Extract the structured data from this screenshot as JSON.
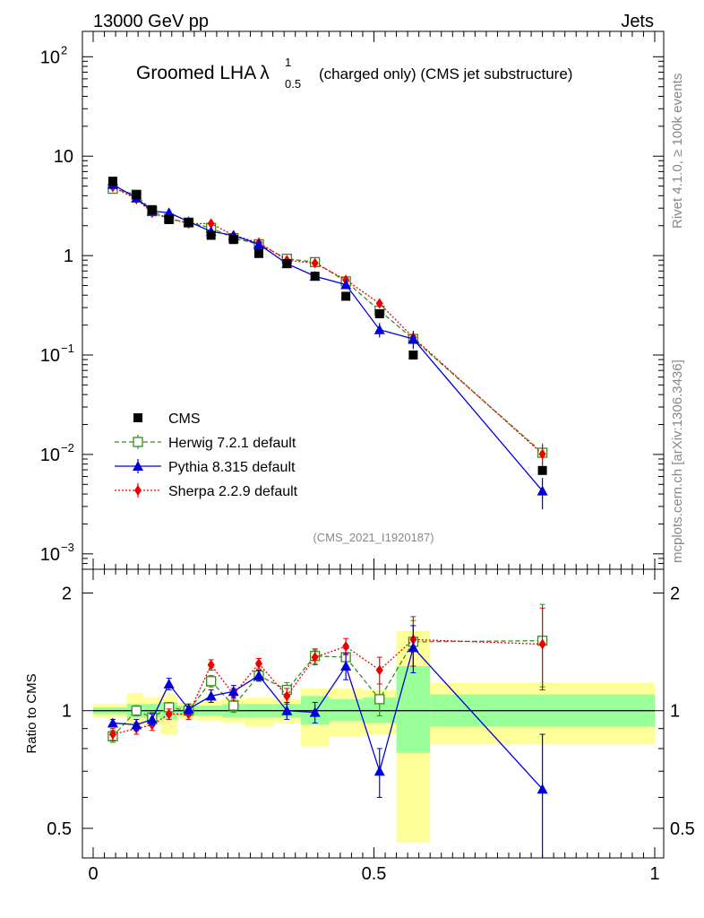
{
  "header": {
    "energy": "13000 GeV pp",
    "category": "Jets",
    "title_pre": "Groomed LHA",
    "lambda": "λ",
    "sup": "1",
    "sub": "0.5",
    "title_post": "(charged only) (CMS jet substructure)",
    "side_top": "Rivet 4.1.0, ≥ 100k events",
    "side_bottom": "mcplots.cern.ch [arXiv:1306.3436]",
    "analysis_id": "(CMS_2021_I1920187)"
  },
  "colors": {
    "herwig": "#3a8a1c",
    "pythia": "#0000dd",
    "sherpa": "#ee0000",
    "band_inner": "#99ff99",
    "band_outer": "#ffff99"
  },
  "chart_data": {
    "type": "scatter",
    "main": {
      "yscale": "log",
      "ylim": [
        0.0007,
        180
      ],
      "y_ticks": [
        {
          "value": 100,
          "base": "10",
          "exp": "2"
        },
        {
          "value": 10,
          "base": "10",
          "exp": ""
        },
        {
          "value": 1,
          "base": "1",
          "exp": ""
        },
        {
          "value": 0.1,
          "base": "10",
          "exp": "−1"
        },
        {
          "value": 0.01,
          "base": "10",
          "exp": "−2"
        },
        {
          "value": 0.001,
          "base": "10",
          "exp": "−3"
        }
      ],
      "legend_position": "lower-left",
      "series": [
        {
          "name": "CMS",
          "key": "cms",
          "x": [
            0.035,
            0.077,
            0.105,
            0.135,
            0.17,
            0.21,
            0.25,
            0.295,
            0.345,
            0.395,
            0.45,
            0.51,
            0.57,
            0.8
          ],
          "values": [
            5.6,
            4.1,
            2.9,
            2.3,
            2.15,
            1.6,
            1.45,
            1.05,
            0.83,
            0.62,
            0.39,
            0.26,
            0.1,
            0.0069
          ]
        },
        {
          "name": "Herwig 7.2.1 default",
          "key": "herwig",
          "x": [
            0.035,
            0.077,
            0.105,
            0.135,
            0.17,
            0.21,
            0.25,
            0.295,
            0.345,
            0.395,
            0.45,
            0.51,
            0.57,
            0.8
          ],
          "values": [
            4.7,
            4.1,
            2.8,
            2.35,
            2.15,
            1.9,
            1.5,
            1.3,
            0.93,
            0.86,
            0.55,
            0.28,
            0.145,
            0.0104
          ],
          "errors": [
            0.15,
            0.12,
            0.08,
            0.07,
            0.07,
            0.06,
            0.05,
            0.05,
            0.04,
            0.04,
            0.03,
            0.02,
            0.01,
            0.0025
          ]
        },
        {
          "name": "Pythia 8.315 default",
          "key": "pythia",
          "x": [
            0.035,
            0.077,
            0.105,
            0.135,
            0.17,
            0.21,
            0.25,
            0.295,
            0.345,
            0.395,
            0.45,
            0.51,
            0.57,
            0.8
          ],
          "values": [
            5.2,
            3.8,
            2.8,
            2.7,
            2.2,
            1.75,
            1.6,
            1.3,
            0.83,
            0.62,
            0.51,
            0.18,
            0.145,
            0.0043
          ],
          "errors": [
            0.15,
            0.12,
            0.09,
            0.08,
            0.07,
            0.06,
            0.05,
            0.05,
            0.04,
            0.04,
            0.03,
            0.03,
            0.03,
            0.0015
          ]
        },
        {
          "name": "Sherpa 2.2.9 default",
          "key": "sherpa",
          "x": [
            0.035,
            0.077,
            0.105,
            0.135,
            0.17,
            0.21,
            0.25,
            0.295,
            0.345,
            0.395,
            0.45,
            0.51,
            0.57,
            0.8
          ],
          "values": [
            4.9,
            3.7,
            2.7,
            2.35,
            2.1,
            2.1,
            1.6,
            1.35,
            0.9,
            0.84,
            0.57,
            0.33,
            0.15,
            0.0101
          ],
          "errors": [
            0.15,
            0.12,
            0.08,
            0.07,
            0.07,
            0.06,
            0.05,
            0.05,
            0.04,
            0.04,
            0.03,
            0.02,
            0.01,
            0.0025
          ]
        }
      ]
    },
    "ratio": {
      "ylabel": "Ratio to CMS",
      "ylim": [
        0.42,
        2.3
      ],
      "yscale": "log",
      "y_ticks": [
        {
          "value": 0.5,
          "label": "0.5"
        },
        {
          "value": 1,
          "label": "1"
        },
        {
          "value": 2,
          "label": "2"
        }
      ],
      "xlim": [
        0,
        1
      ],
      "x_ticks": [
        {
          "value": 0,
          "label": "0"
        },
        {
          "value": 0.5,
          "label": "0.5"
        },
        {
          "value": 1,
          "label": "1"
        }
      ],
      "bands": [
        {
          "x0": 0.0,
          "x1": 0.06,
          "inner": [
            0.98,
            1.02
          ],
          "outer": [
            0.96,
            1.04
          ]
        },
        {
          "x0": 0.06,
          "x1": 0.09,
          "inner": [
            0.96,
            1.04
          ],
          "outer": [
            0.92,
            1.11
          ]
        },
        {
          "x0": 0.09,
          "x1": 0.12,
          "inner": [
            0.96,
            1.04
          ],
          "outer": [
            0.92,
            1.08
          ]
        },
        {
          "x0": 0.12,
          "x1": 0.15,
          "inner": [
            0.95,
            1.05
          ],
          "outer": [
            0.87,
            1.1
          ]
        },
        {
          "x0": 0.15,
          "x1": 0.19,
          "inner": [
            0.97,
            1.03
          ],
          "outer": [
            0.95,
            1.05
          ]
        },
        {
          "x0": 0.19,
          "x1": 0.23,
          "inner": [
            0.97,
            1.03
          ],
          "outer": [
            0.94,
            1.06
          ]
        },
        {
          "x0": 0.23,
          "x1": 0.27,
          "inner": [
            0.96,
            1.04
          ],
          "outer": [
            0.93,
            1.07
          ]
        },
        {
          "x0": 0.27,
          "x1": 0.32,
          "inner": [
            0.96,
            1.04
          ],
          "outer": [
            0.91,
            1.08
          ]
        },
        {
          "x0": 0.32,
          "x1": 0.37,
          "inner": [
            0.96,
            1.04
          ],
          "outer": [
            0.93,
            1.07
          ]
        },
        {
          "x0": 0.37,
          "x1": 0.42,
          "inner": [
            0.92,
            1.09
          ],
          "outer": [
            0.81,
            1.14
          ]
        },
        {
          "x0": 0.42,
          "x1": 0.48,
          "inner": [
            0.94,
            1.07
          ],
          "outer": [
            0.86,
            1.14
          ]
        },
        {
          "x0": 0.48,
          "x1": 0.54,
          "inner": [
            0.93,
            1.08
          ],
          "outer": [
            0.87,
            1.13
          ]
        },
        {
          "x0": 0.54,
          "x1": 0.6,
          "inner": [
            0.78,
            1.3
          ],
          "outer": [
            0.46,
            1.6
          ]
        },
        {
          "x0": 0.6,
          "x1": 1.0,
          "inner": [
            0.91,
            1.1
          ],
          "outer": [
            0.82,
            1.18
          ]
        }
      ],
      "series": [
        {
          "key": "herwig",
          "values": [
            0.86,
            1.0,
            0.96,
            1.02,
            1.0,
            1.19,
            1.03,
            1.23,
            1.13,
            1.38,
            1.37,
            1.07,
            1.5,
            1.51
          ],
          "errors": [
            0.03,
            0.03,
            0.03,
            0.03,
            0.03,
            0.04,
            0.04,
            0.04,
            0.05,
            0.06,
            0.07,
            0.1,
            0.2,
            0.36
          ]
        },
        {
          "key": "pythia",
          "values": [
            0.93,
            0.92,
            0.95,
            1.17,
            1.01,
            1.09,
            1.12,
            1.23,
            1.0,
            0.99,
            1.3,
            0.7,
            1.45,
            0.63
          ],
          "errors": [
            0.02,
            0.03,
            0.03,
            0.04,
            0.03,
            0.04,
            0.04,
            0.04,
            0.05,
            0.06,
            0.1,
            0.1,
            0.2,
            0.24
          ]
        },
        {
          "key": "sherpa",
          "values": [
            0.87,
            0.9,
            0.92,
            0.98,
            0.98,
            1.31,
            1.1,
            1.32,
            1.09,
            1.37,
            1.46,
            1.27,
            1.52,
            1.48
          ],
          "errors": [
            0.03,
            0.03,
            0.03,
            0.03,
            0.03,
            0.04,
            0.04,
            0.04,
            0.05,
            0.06,
            0.07,
            0.1,
            0.22,
            0.35
          ]
        }
      ]
    }
  }
}
